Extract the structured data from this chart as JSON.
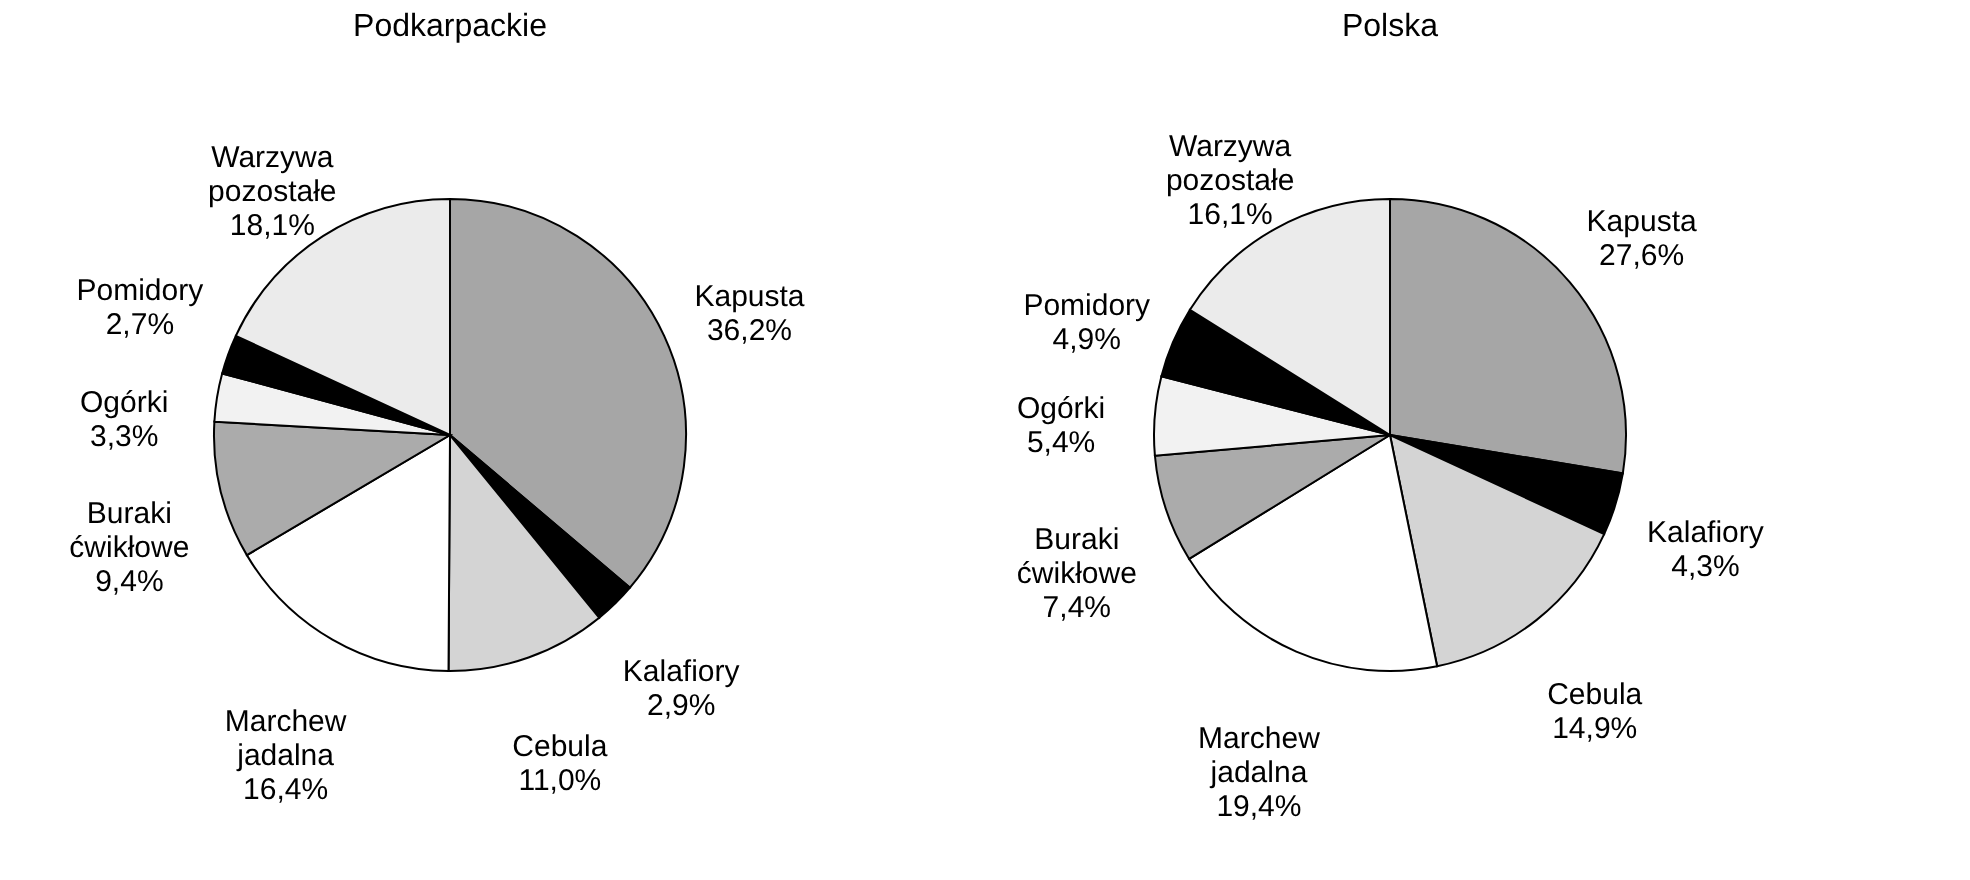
{
  "chart_data": [
    {
      "type": "pie",
      "title": "Podkarpackie",
      "categories": [
        "Kapusta",
        "Kalafiory",
        "Cebula",
        "Marchew jadalna",
        "Buraki ćwikłowe",
        "Ogórki",
        "Pomidory",
        "Warzywa pozostałe"
      ],
      "values": [
        36.2,
        2.9,
        11.0,
        16.4,
        9.4,
        3.3,
        2.7,
        18.1
      ],
      "colors": [
        "#a6a6a6",
        "#000000",
        "#d4d4d4",
        "#ffffff",
        "#ababab",
        "#f2f2f2",
        "#000000",
        "#ebebeb"
      ],
      "value_labels": [
        "36,2%",
        "2,9%",
        "11,0%",
        "16,4%",
        "9,4%",
        "3,3%",
        "2,7%",
        "18,1%"
      ]
    },
    {
      "type": "pie",
      "title": "Polska",
      "categories": [
        "Kapusta",
        "Kalafiory",
        "Cebula",
        "Marchew jadalna",
        "Buraki ćwikłowe",
        "Ogórki",
        "Pomidory",
        "Warzywa pozostałe"
      ],
      "values": [
        27.6,
        4.3,
        14.9,
        19.4,
        7.4,
        5.4,
        4.9,
        16.1
      ],
      "colors": [
        "#a6a6a6",
        "#000000",
        "#d4d4d4",
        "#ffffff",
        "#ababab",
        "#f2f2f2",
        "#000000",
        "#ebebeb"
      ],
      "value_labels": [
        "27,6%",
        "4,3%",
        "14,9%",
        "19,4%",
        "7,4%",
        "5,4%",
        "4,9%",
        "16,1%"
      ]
    }
  ]
}
